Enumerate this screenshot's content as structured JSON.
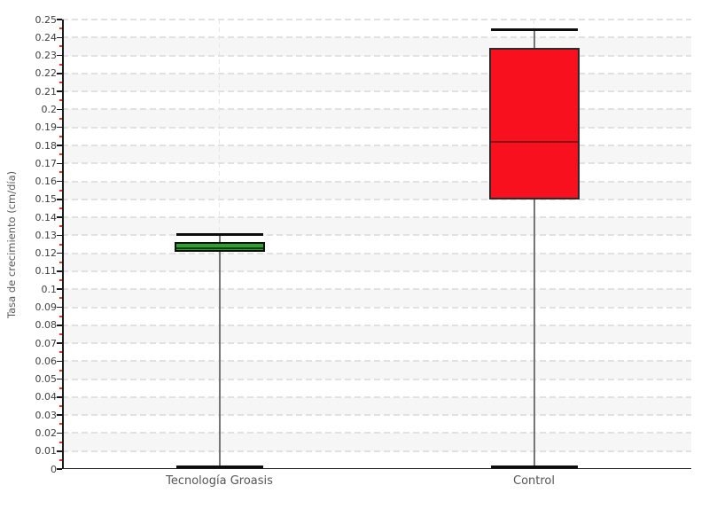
{
  "chart_data": {
    "type": "boxplot",
    "title": "",
    "xlabel": "",
    "ylabel": "Tasa de crecimiento (cm/día)",
    "categories": [
      "Tecnología Groasis",
      "Control"
    ],
    "series": [
      {
        "name": "Tecnología Groasis",
        "min": 0,
        "q1": 0.121,
        "median": 0.123,
        "q3": 0.126,
        "max": 0.13,
        "fill": "#2da02d",
        "border": "#101010",
        "median_color": "#0c3c0c"
      },
      {
        "name": "Control",
        "min": 0,
        "q1": 0.15,
        "median": 0.182,
        "q3": 0.234,
        "max": 0.244,
        "fill": "#f8101e",
        "border": "#2b2b2b",
        "median_color": "#8b0f17"
      }
    ],
    "y_axis": {
      "min": 0,
      "max": 0.25,
      "major_step": 0.01,
      "minor_step": 0.005,
      "tick_labels": [
        "0",
        "0.01",
        "0.02",
        "0.03",
        "0.04",
        "0.05",
        "0.06",
        "0.07",
        "0.08",
        "0.09",
        "0.1",
        "0.11",
        "0.12",
        "0.13",
        "0.14",
        "0.15",
        "0.16",
        "0.17",
        "0.18",
        "0.19",
        "0.2",
        "0.21",
        "0.22",
        "0.23",
        "0.24",
        "0.25"
      ]
    },
    "legend": "none",
    "grid": "horizontal-dashed",
    "background_bands": "alternating horizontal stripes every 0.01"
  },
  "colors": {
    "band": "#f6f6f6",
    "gridline": "#e1e1e1",
    "category_line": "#e6e6e6",
    "axis": "#1a1a1a",
    "major_tick": "#1a1a1a",
    "minor_tick": "#e23a1e",
    "whisker": "#757575",
    "whisker_cap": "#0d0d0d",
    "tick_label": "#3f3f3f",
    "axis_label": "#555555"
  }
}
